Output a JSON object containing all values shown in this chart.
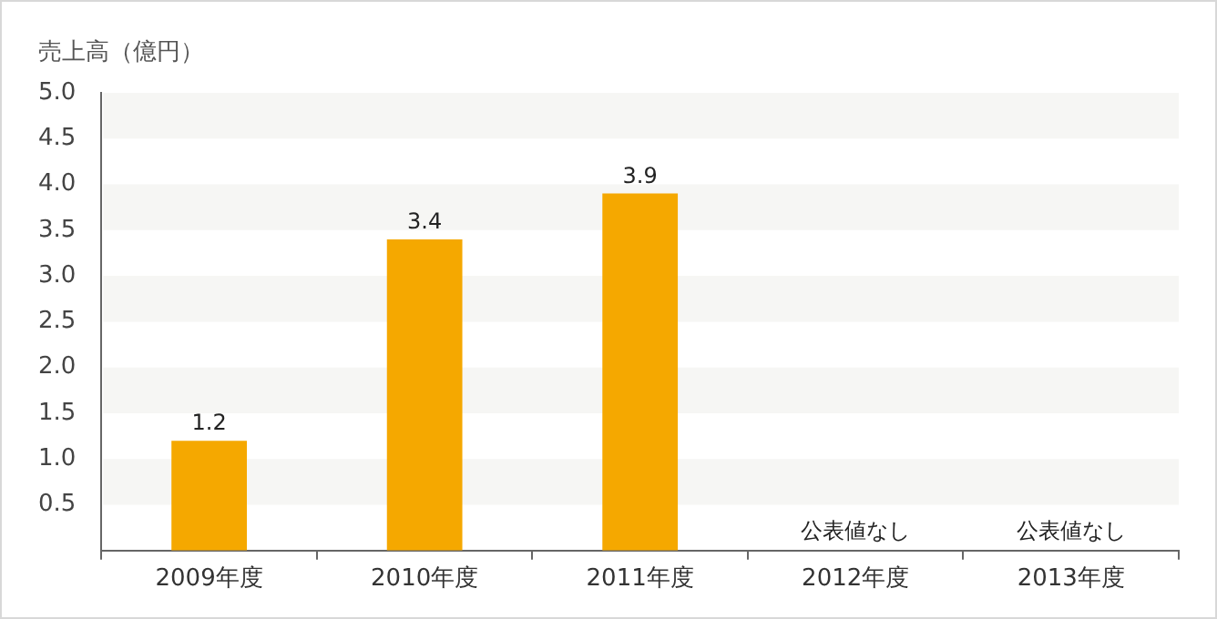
{
  "chart_data": {
    "type": "bar",
    "ylabel": "売上高（億円）",
    "categories": [
      "2009年度",
      "2010年度",
      "2011年度",
      "2012年度",
      "2013年度"
    ],
    "values": [
      1.2,
      3.4,
      3.9,
      null,
      null
    ],
    "value_labels": [
      "1.2",
      "3.4",
      "3.9",
      "公表値なし",
      "公表値なし"
    ],
    "color": "#f5a800",
    "ylim": [
      0,
      5
    ],
    "yticks": [
      {
        "value": 0.5,
        "label": "0.5"
      },
      {
        "value": 1,
        "label": "1.0"
      },
      {
        "value": 1.5,
        "label": "1.5"
      },
      {
        "value": 2,
        "label": "2.0"
      },
      {
        "value": 2.5,
        "label": "2.5"
      },
      {
        "value": 3,
        "label": "3.0"
      },
      {
        "value": 3.5,
        "label": "3.5"
      },
      {
        "value": 4,
        "label": "4.0"
      },
      {
        "value": 4.5,
        "label": "4.5"
      },
      {
        "value": 5,
        "label": "5.0"
      }
    ]
  }
}
